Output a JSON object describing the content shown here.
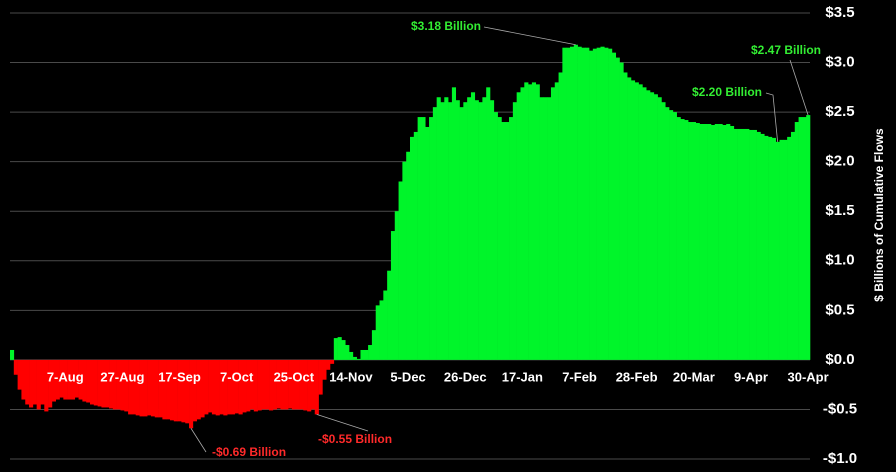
{
  "chart_data": {
    "type": "bar",
    "y_label": "$ Billions of Cumulative Flows",
    "positive_color": "#00f52a",
    "negative_color": "#ff0000",
    "grid": true,
    "ylim": [
      -1.0,
      3.5
    ],
    "yticks": [
      {
        "value": -1.0,
        "label": "-$1.0"
      },
      {
        "value": -0.5,
        "label": "-$0.5"
      },
      {
        "value": 0,
        "label": "$0.0"
      },
      {
        "value": 0.5,
        "label": "$0.5"
      },
      {
        "value": 1.0,
        "label": "$1.0"
      },
      {
        "value": 1.5,
        "label": "$1.5"
      },
      {
        "value": 2.0,
        "label": "$2.0"
      },
      {
        "value": 2.5,
        "label": "$2.5"
      },
      {
        "value": 3.0,
        "label": "$3.0"
      },
      {
        "value": 3.5,
        "label": "$3.5"
      }
    ],
    "annotations": [
      "$3.18 Billion",
      "$2.47 Billion",
      "$2.20 Billion",
      "-$0.69 Billion",
      "-$0.55 Billion"
    ],
    "categories": [
      null,
      null,
      null,
      null,
      null,
      null,
      null,
      null,
      null,
      null,
      null,
      null,
      null,
      null,
      "7-Aug",
      null,
      null,
      null,
      null,
      null,
      null,
      null,
      null,
      null,
      null,
      null,
      null,
      null,
      null,
      "27-Aug",
      null,
      null,
      null,
      null,
      null,
      null,
      null,
      null,
      null,
      null,
      null,
      null,
      null,
      null,
      "17-Sep",
      null,
      null,
      null,
      null,
      null,
      null,
      null,
      null,
      null,
      null,
      null,
      null,
      null,
      null,
      "7-Oct",
      null,
      null,
      null,
      null,
      null,
      null,
      null,
      null,
      null,
      null,
      null,
      null,
      null,
      null,
      "25-Oct",
      null,
      null,
      null,
      null,
      null,
      null,
      null,
      null,
      null,
      null,
      null,
      null,
      null,
      null,
      "14-Nov",
      null,
      null,
      null,
      null,
      null,
      null,
      null,
      null,
      null,
      null,
      null,
      null,
      null,
      null,
      "5-Dec",
      null,
      null,
      null,
      null,
      null,
      null,
      null,
      null,
      null,
      null,
      null,
      null,
      null,
      null,
      "26-Dec",
      null,
      null,
      null,
      null,
      null,
      null,
      null,
      null,
      null,
      null,
      null,
      null,
      null,
      null,
      "17-Jan",
      null,
      null,
      null,
      null,
      null,
      null,
      null,
      null,
      null,
      null,
      null,
      null,
      null,
      null,
      "7-Feb",
      null,
      null,
      null,
      null,
      null,
      null,
      null,
      null,
      null,
      null,
      null,
      null,
      null,
      null,
      "28-Feb",
      null,
      null,
      null,
      null,
      null,
      null,
      null,
      null,
      null,
      null,
      null,
      null,
      null,
      null,
      "20-Mar",
      null,
      null,
      null,
      null,
      null,
      null,
      null,
      null,
      null,
      null,
      null,
      null,
      null,
      null,
      "9-Apr",
      null,
      null,
      null,
      null,
      null,
      null,
      null,
      null,
      null,
      null,
      null,
      null,
      null,
      null,
      "30-Apr"
    ],
    "values": [
      0.1,
      -0.15,
      -0.3,
      -0.4,
      -0.45,
      -0.48,
      -0.45,
      -0.5,
      -0.45,
      -0.52,
      -0.48,
      -0.42,
      -0.4,
      -0.38,
      -0.4,
      -0.4,
      -0.4,
      -0.38,
      -0.4,
      -0.42,
      -0.43,
      -0.45,
      -0.46,
      -0.47,
      -0.48,
      -0.48,
      -0.49,
      -0.5,
      -0.5,
      -0.51,
      -0.52,
      -0.55,
      -0.55,
      -0.56,
      -0.57,
      -0.57,
      -0.56,
      -0.57,
      -0.58,
      -0.58,
      -0.6,
      -0.6,
      -0.61,
      -0.62,
      -0.62,
      -0.63,
      -0.64,
      -0.69,
      -0.62,
      -0.6,
      -0.58,
      -0.55,
      -0.53,
      -0.55,
      -0.56,
      -0.55,
      -0.56,
      -0.55,
      -0.55,
      -0.54,
      -0.55,
      -0.53,
      -0.52,
      -0.5,
      -0.52,
      -0.51,
      -0.5,
      -0.5,
      -0.51,
      -0.5,
      -0.49,
      -0.5,
      -0.5,
      -0.49,
      -0.5,
      -0.5,
      -0.5,
      -0.51,
      -0.52,
      -0.5,
      -0.55,
      -0.35,
      -0.2,
      -0.1,
      -0.04,
      0.22,
      0.23,
      0.2,
      0.15,
      0.08,
      0.03,
      0.01,
      0.1,
      0.1,
      0.15,
      0.3,
      0.55,
      0.6,
      0.7,
      0.9,
      1.3,
      1.5,
      1.8,
      2.0,
      2.1,
      2.25,
      2.3,
      2.45,
      2.45,
      2.35,
      2.45,
      2.55,
      2.65,
      2.6,
      2.65,
      2.6,
      2.75,
      2.62,
      2.55,
      2.6,
      2.65,
      2.7,
      2.62,
      2.6,
      2.65,
      2.75,
      2.62,
      2.5,
      2.45,
      2.4,
      2.4,
      2.45,
      2.6,
      2.7,
      2.75,
      2.8,
      2.78,
      2.8,
      2.78,
      2.65,
      2.65,
      2.65,
      2.75,
      2.8,
      2.9,
      3.15,
      3.15,
      3.16,
      3.18,
      3.16,
      3.15,
      3.15,
      3.12,
      3.14,
      3.15,
      3.16,
      3.15,
      3.14,
      3.1,
      3.05,
      3.0,
      2.9,
      2.85,
      2.82,
      2.8,
      2.78,
      2.75,
      2.72,
      2.7,
      2.68,
      2.65,
      2.6,
      2.55,
      2.52,
      2.5,
      2.45,
      2.43,
      2.42,
      2.4,
      2.4,
      2.39,
      2.38,
      2.38,
      2.38,
      2.37,
      2.38,
      2.38,
      2.37,
      2.38,
      2.36,
      2.33,
      2.33,
      2.33,
      2.33,
      2.32,
      2.32,
      2.3,
      2.28,
      2.26,
      2.25,
      2.24,
      2.2,
      2.22,
      2.22,
      2.25,
      2.3,
      2.4,
      2.45,
      2.45,
      2.47
    ]
  }
}
